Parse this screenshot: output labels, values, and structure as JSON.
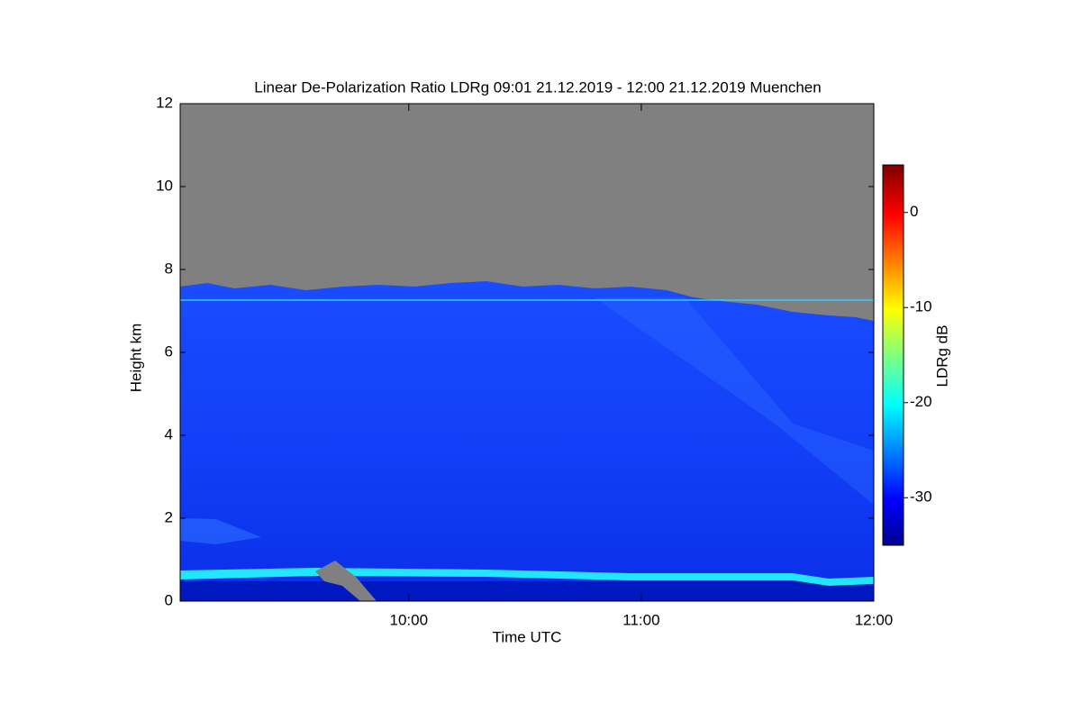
{
  "chart_data": {
    "type": "heatmap",
    "title": "Linear De-Polarization Ratio LDRg   09:01 21.12.2019 - 12:00 21.12.2019 Muenchen",
    "x_label": "Time UTC",
    "y_label": "Height km",
    "colorbar_label": "LDRg dB",
    "xlim": [
      "09:01",
      "12:00"
    ],
    "xticks": [
      "10:00",
      "11:00",
      "12:00"
    ],
    "ylim": [
      0,
      12
    ],
    "yticks": [
      0,
      2,
      4,
      6,
      8,
      10,
      12
    ],
    "clim": [
      -35,
      5
    ],
    "cticks": [
      -30,
      -20,
      -10,
      0
    ]
  }
}
